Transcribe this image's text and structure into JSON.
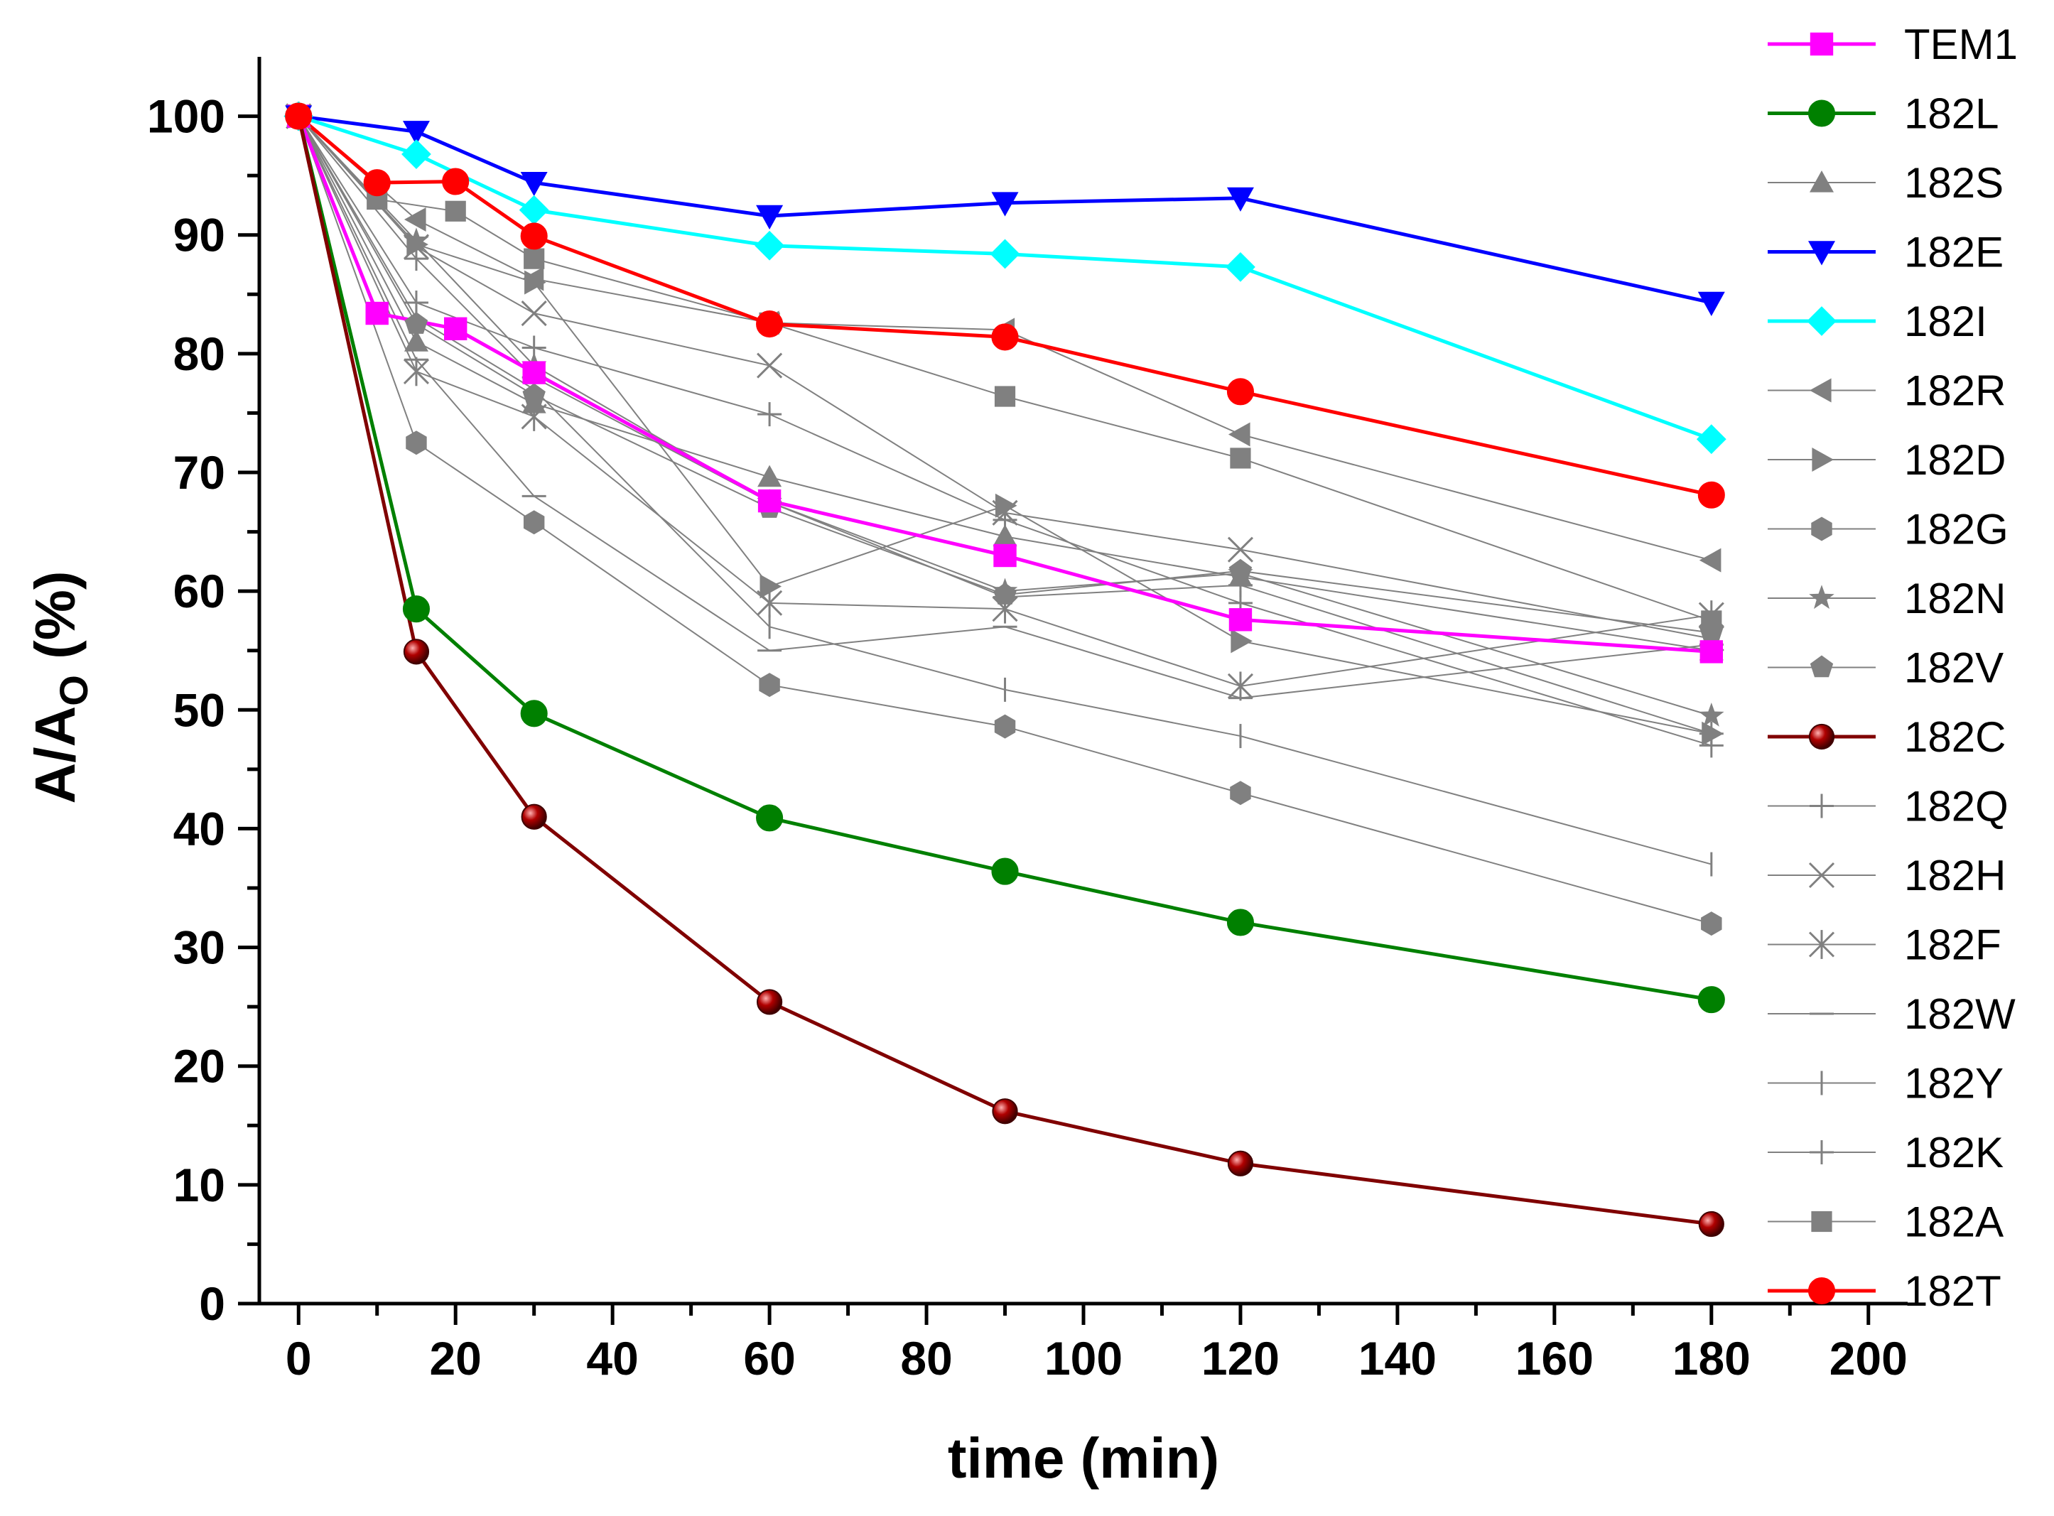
{
  "chart_data": {
    "type": "line",
    "title": "",
    "xlabel": "time (min)",
    "ylabel": {
      "main": "A/A",
      "sub": "O",
      "suffix": " (%)"
    },
    "xlim": [
      -5,
      205
    ],
    "ylim": [
      0,
      105
    ],
    "xticks": [
      0,
      20,
      40,
      60,
      80,
      100,
      120,
      140,
      160,
      180,
      200
    ],
    "yticks": [
      0,
      10,
      20,
      30,
      40,
      50,
      60,
      70,
      80,
      90,
      100
    ],
    "grid": false,
    "legend_position": "outside-right",
    "series": [
      {
        "name": "TEM1",
        "color": "#ff00ff",
        "marker": "square",
        "fill": "#ff00ff",
        "width": 5,
        "points": [
          [
            0,
            100
          ],
          [
            10,
            83.4
          ],
          [
            20,
            82.1
          ],
          [
            30,
            78.4
          ],
          [
            60,
            67.6
          ],
          [
            90,
            63.0
          ],
          [
            120,
            57.6
          ],
          [
            180,
            54.9
          ]
        ]
      },
      {
        "name": "182L",
        "color": "#008000",
        "marker": "circle",
        "fill": "#008000",
        "width": 5,
        "points": [
          [
            0,
            100
          ],
          [
            15,
            58.5
          ],
          [
            30,
            49.7
          ],
          [
            60,
            40.9
          ],
          [
            90,
            36.4
          ],
          [
            120,
            32.1
          ],
          [
            180,
            25.6
          ]
        ]
      },
      {
        "name": "182S",
        "color": "#808080",
        "marker": "triangle-up",
        "fill": "#808080",
        "width": 2,
        "points": [
          [
            0,
            100
          ],
          [
            15,
            81.0
          ],
          [
            30,
            75.8
          ],
          [
            60,
            69.6
          ],
          [
            90,
            64.6
          ],
          [
            120,
            61.2
          ],
          [
            180,
            55.0
          ]
        ]
      },
      {
        "name": "182E",
        "color": "#0000ff",
        "marker": "triangle-down",
        "fill": "#0000ff",
        "width": 5,
        "points": [
          [
            0,
            100
          ],
          [
            15,
            98.7
          ],
          [
            30,
            94.4
          ],
          [
            60,
            91.6
          ],
          [
            90,
            92.7
          ],
          [
            120,
            93.1
          ],
          [
            180,
            84.3
          ]
        ]
      },
      {
        "name": "182I",
        "color": "#00ffff",
        "marker": "diamond",
        "fill": "#00ffff",
        "width": 5,
        "points": [
          [
            0,
            100
          ],
          [
            15,
            96.8
          ],
          [
            30,
            92.1
          ],
          [
            60,
            89.1
          ],
          [
            90,
            88.4
          ],
          [
            120,
            87.3
          ],
          [
            180,
            72.8
          ]
        ]
      },
      {
        "name": "182R",
        "color": "#808080",
        "marker": "triangle-left",
        "fill": "#808080",
        "width": 2,
        "points": [
          [
            0,
            100
          ],
          [
            15,
            91.3
          ],
          [
            30,
            86.3
          ],
          [
            60,
            82.6
          ],
          [
            90,
            82.0
          ],
          [
            120,
            73.2
          ],
          [
            180,
            62.6
          ]
        ]
      },
      {
        "name": "182D",
        "color": "#808080",
        "marker": "triangle-right",
        "fill": "#808080",
        "width": 2,
        "points": [
          [
            0,
            100
          ],
          [
            15,
            89.2
          ],
          [
            30,
            86.0
          ],
          [
            60,
            60.4
          ],
          [
            90,
            67.2
          ],
          [
            120,
            55.8
          ],
          [
            180,
            48.0
          ]
        ]
      },
      {
        "name": "182G",
        "color": "#808080",
        "marker": "hexagon",
        "fill": "#808080",
        "width": 2,
        "points": [
          [
            0,
            100
          ],
          [
            15,
            72.5
          ],
          [
            30,
            65.8
          ],
          [
            60,
            52.1
          ],
          [
            90,
            48.6
          ],
          [
            120,
            43.0
          ],
          [
            180,
            32.0
          ]
        ]
      },
      {
        "name": "182N",
        "color": "#808080",
        "marker": "star",
        "fill": "#808080",
        "width": 2,
        "points": [
          [
            0,
            100
          ],
          [
            15,
            89.5
          ],
          [
            30,
            79.0
          ],
          [
            60,
            67.5
          ],
          [
            90,
            60.0
          ],
          [
            120,
            61.5
          ],
          [
            180,
            49.5
          ]
        ]
      },
      {
        "name": "182V",
        "color": "#808080",
        "marker": "pentagon",
        "fill": "#808080",
        "width": 2,
        "points": [
          [
            0,
            100
          ],
          [
            15,
            82.5
          ],
          [
            30,
            76.5
          ],
          [
            60,
            67.0
          ],
          [
            90,
            59.7
          ],
          [
            120,
            61.7
          ],
          [
            180,
            56.5
          ]
        ]
      },
      {
        "name": "182C",
        "color": "#800000",
        "marker": "sphere",
        "fill": "#8b0000",
        "width": 5,
        "points": [
          [
            0,
            100
          ],
          [
            15,
            54.9
          ],
          [
            30,
            41.0
          ],
          [
            60,
            25.4
          ],
          [
            90,
            16.2
          ],
          [
            120,
            11.8
          ],
          [
            180,
            6.7
          ]
        ]
      },
      {
        "name": "182Q",
        "color": "#808080",
        "marker": "plus",
        "fill": "#808080",
        "width": 2,
        "points": [
          [
            0,
            100
          ],
          [
            15,
            84.3
          ],
          [
            30,
            80.5
          ],
          [
            60,
            74.9
          ],
          [
            90,
            66.0
          ],
          [
            120,
            59.0
          ],
          [
            180,
            47.0
          ]
        ]
      },
      {
        "name": "182H",
        "color": "#808080",
        "marker": "x",
        "fill": "#808080",
        "width": 2,
        "points": [
          [
            0,
            100
          ],
          [
            15,
            89.0
          ],
          [
            30,
            83.4
          ],
          [
            60,
            79.0
          ],
          [
            90,
            66.6
          ],
          [
            120,
            63.5
          ],
          [
            180,
            56.0
          ]
        ]
      },
      {
        "name": "182F",
        "color": "#808080",
        "marker": "asterisk",
        "fill": "#808080",
        "width": 2,
        "points": [
          [
            0,
            100
          ],
          [
            15,
            78.5
          ],
          [
            30,
            74.7
          ],
          [
            60,
            59.0
          ],
          [
            90,
            58.5
          ],
          [
            120,
            52.0
          ],
          [
            180,
            58.0
          ]
        ]
      },
      {
        "name": "182W",
        "color": "#808080",
        "marker": "hline",
        "fill": "#808080",
        "width": 2,
        "points": [
          [
            0,
            100
          ],
          [
            15,
            79.5
          ],
          [
            30,
            68.0
          ],
          [
            60,
            55.0
          ],
          [
            90,
            57.0
          ],
          [
            120,
            51.0
          ],
          [
            180,
            55.5
          ]
        ]
      },
      {
        "name": "182Y",
        "color": "#808080",
        "marker": "vline",
        "fill": "#808080",
        "width": 2,
        "points": [
          [
            0,
            100
          ],
          [
            15,
            83.0
          ],
          [
            30,
            77.0
          ],
          [
            60,
            57.0
          ],
          [
            90,
            51.7
          ],
          [
            120,
            47.8
          ],
          [
            180,
            37.0
          ]
        ]
      },
      {
        "name": "182K",
        "color": "#808080",
        "marker": "plus",
        "fill": "#808080",
        "width": 2,
        "points": [
          [
            0,
            100
          ],
          [
            15,
            88.0
          ],
          [
            30,
            78.0
          ],
          [
            60,
            67.5
          ],
          [
            90,
            59.5
          ],
          [
            120,
            60.5
          ],
          [
            180,
            48.0
          ]
        ]
      },
      {
        "name": "182A",
        "color": "#808080",
        "marker": "square",
        "fill": "#808080",
        "width": 2,
        "points": [
          [
            0,
            100
          ],
          [
            10,
            93.0
          ],
          [
            20,
            92.0
          ],
          [
            30,
            88.0
          ],
          [
            60,
            82.6
          ],
          [
            90,
            76.4
          ],
          [
            120,
            71.2
          ],
          [
            180,
            57.5
          ]
        ]
      },
      {
        "name": "182T",
        "color": "#ff0000",
        "marker": "circle",
        "fill": "#ff0000",
        "width": 5,
        "points": [
          [
            0,
            100
          ],
          [
            10,
            94.4
          ],
          [
            20,
            94.5
          ],
          [
            30,
            89.9
          ],
          [
            60,
            82.5
          ],
          [
            90,
            81.4
          ],
          [
            120,
            76.8
          ],
          [
            180,
            68.1
          ]
        ]
      }
    ]
  }
}
